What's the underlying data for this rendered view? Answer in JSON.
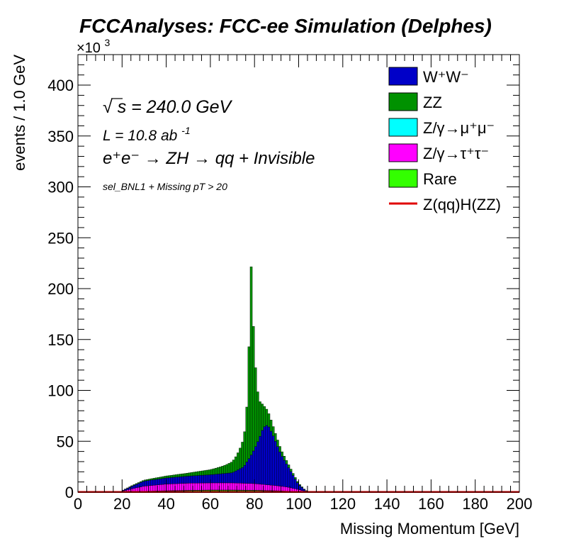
{
  "chart_data": {
    "type": "bar",
    "stacked": true,
    "histogram": true,
    "title": "FCCAnalyses: FCC-ee Simulation (Delphes)",
    "xlabel": "Missing Momentum [GeV]",
    "ylabel": "events / 1.0 GeV",
    "y_exponent_label": "×10",
    "y_exponent_power": "3",
    "xlim": [
      0,
      200
    ],
    "ylim": [
      0,
      430
    ],
    "y_unit_multiplier": 1000,
    "bin_width": 1.0,
    "x_ticks": [
      "0",
      "20",
      "40",
      "60",
      "80",
      "100",
      "120",
      "140",
      "160",
      "180",
      "200"
    ],
    "y_ticks": [
      "0",
      "50",
      "100",
      "150",
      "200",
      "250",
      "300",
      "350",
      "400"
    ],
    "grid": false,
    "legend_position": "top-right",
    "annotations": {
      "sqrt_symbol": "√",
      "sqrt_s": "s",
      "energy": " = 240.0 GeV",
      "lumi_text": "L = 10.8 ab",
      "lumi_sup": "-1",
      "process_text": "e⁺e⁻ → ZH → qq + Invisible",
      "selection": "sel_BNL1 + Missing pT > 20"
    },
    "colors": {
      "WW": "#0000c8",
      "ZZ": "#009100",
      "Zmumu": "#00ffff",
      "Ztautau": "#ff00ff",
      "Rare": "#33ff00",
      "signal": "#e00000"
    },
    "series": [
      {
        "name": "W⁺W⁻",
        "key": "WW",
        "x": [
          20,
          30,
          40,
          50,
          60,
          70,
          75,
          78,
          80,
          82,
          84,
          86,
          88,
          90,
          92,
          95,
          98,
          100,
          103,
          105
        ],
        "values": [
          0.5,
          5,
          6,
          7,
          8,
          10,
          16,
          26,
          34,
          44,
          56,
          59,
          51,
          41,
          31,
          21,
          11,
          5,
          1,
          0
        ]
      },
      {
        "name": "ZZ",
        "key": "ZZ",
        "x": [
          20,
          30,
          40,
          50,
          60,
          65,
          68,
          70,
          72,
          74,
          75,
          76,
          77,
          77.5,
          78,
          78.5,
          79,
          80,
          81,
          82,
          84,
          86,
          88,
          90,
          92,
          95,
          100,
          103,
          105
        ],
        "values": [
          0.2,
          1,
          2,
          3,
          5,
          7,
          9,
          11,
          15,
          22,
          28,
          38,
          70,
          110,
          170,
          185,
          150,
          95,
          60,
          38,
          22,
          14,
          10,
          7,
          5,
          3,
          1,
          0.3,
          0
        ]
      },
      {
        "name": "Z/γ→μ⁺μ⁻",
        "key": "Zmumu",
        "x": [
          20,
          50,
          80,
          105
        ],
        "values": [
          0,
          0.3,
          0.3,
          0
        ]
      },
      {
        "name": "Z/γ→τ⁺τ⁻",
        "key": "Ztautau",
        "x": [
          20,
          25,
          30,
          40,
          50,
          60,
          70,
          80,
          90,
          95,
          100,
          103,
          105
        ],
        "values": [
          0.5,
          3,
          5,
          6.5,
          7,
          7,
          7,
          6.5,
          5,
          4,
          2,
          0.5,
          0
        ]
      },
      {
        "name": "Rare",
        "key": "Rare",
        "x": [
          20,
          30,
          40,
          50,
          60,
          70,
          80,
          90,
          100,
          105
        ],
        "values": [
          0.3,
          0.8,
          1.2,
          1.5,
          1.8,
          1.8,
          1.6,
          1.2,
          0.5,
          0
        ]
      },
      {
        "name": "Z(qq)H(ZZ)",
        "key": "signal",
        "line": true,
        "x": [
          0,
          200
        ],
        "values": [
          0.2,
          0.2
        ]
      }
    ],
    "stack_order_bottom_to_top": [
      "Rare",
      "Zmumu",
      "Ztautau",
      "WW",
      "ZZ"
    ],
    "legend_order": [
      "WW",
      "ZZ",
      "Zmumu",
      "Ztautau",
      "Rare",
      "signal"
    ]
  }
}
